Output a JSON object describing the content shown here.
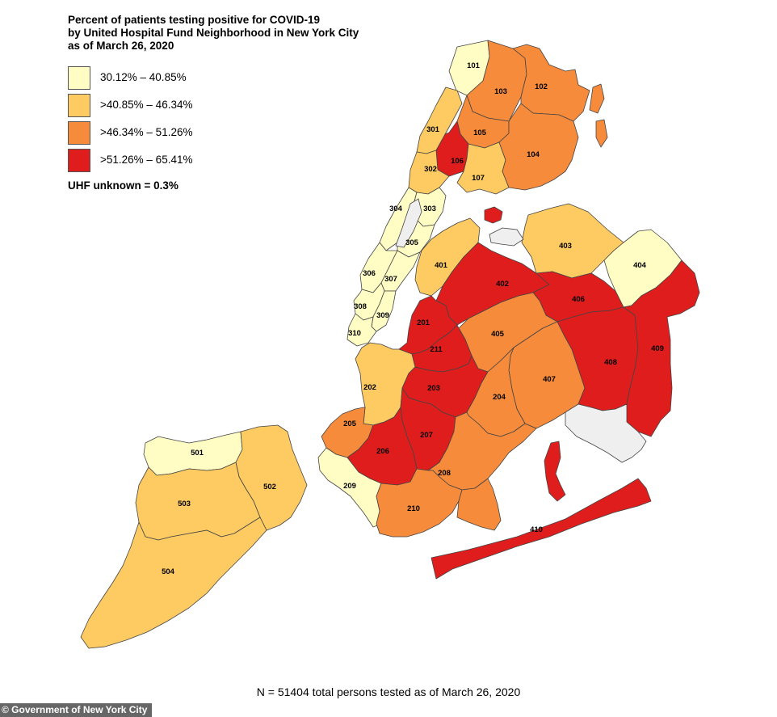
{
  "title": {
    "line1": "Percent of patients testing positive for COVID-19",
    "line2": "by United Hospital Fund Neighborhood in New York City",
    "line3": "as of March 26, 2020"
  },
  "legend": {
    "items": [
      {
        "label": "30.12% – 40.85%",
        "color": "#fffdc4"
      },
      {
        "label": ">40.85% – 46.34%",
        "color": "#fdcb62"
      },
      {
        "label": ">46.34% – 51.26%",
        "color": "#f68b3c"
      },
      {
        "label": ">51.26% – 65.41%",
        "color": "#e01d1d"
      }
    ]
  },
  "unknown_note": "UHF unknown = 0.3%",
  "footnote": "N = 51404 total persons tested as of March 26, 2020",
  "credit": "© Government of New York City",
  "colors": {
    "no_data": "#efefef",
    "boundary": "#444444",
    "water": "#ffffff"
  },
  "neighborhoods": [
    {
      "id": "101",
      "class": 1
    },
    {
      "id": "102",
      "class": 3
    },
    {
      "id": "103",
      "class": 3
    },
    {
      "id": "104",
      "class": 3
    },
    {
      "id": "105",
      "class": 3
    },
    {
      "id": "106",
      "class": 4
    },
    {
      "id": "107",
      "class": 2
    },
    {
      "id": "201",
      "class": 4
    },
    {
      "id": "202",
      "class": 2
    },
    {
      "id": "203",
      "class": 4
    },
    {
      "id": "204",
      "class": 3
    },
    {
      "id": "205",
      "class": 3
    },
    {
      "id": "206",
      "class": 4
    },
    {
      "id": "207",
      "class": 4
    },
    {
      "id": "208",
      "class": 3
    },
    {
      "id": "209",
      "class": 1
    },
    {
      "id": "210",
      "class": 3
    },
    {
      "id": "211",
      "class": 4
    },
    {
      "id": "301",
      "class": 2
    },
    {
      "id": "302",
      "class": 2
    },
    {
      "id": "303",
      "class": 1
    },
    {
      "id": "304",
      "class": 1
    },
    {
      "id": "305",
      "class": 1
    },
    {
      "id": "306",
      "class": 1
    },
    {
      "id": "307",
      "class": 1
    },
    {
      "id": "308",
      "class": 1
    },
    {
      "id": "309",
      "class": 1
    },
    {
      "id": "310",
      "class": 1
    },
    {
      "id": "401",
      "class": 2
    },
    {
      "id": "402",
      "class": 4
    },
    {
      "id": "403",
      "class": 2
    },
    {
      "id": "404",
      "class": 1
    },
    {
      "id": "405",
      "class": 3
    },
    {
      "id": "406",
      "class": 4
    },
    {
      "id": "407",
      "class": 3
    },
    {
      "id": "408",
      "class": 4
    },
    {
      "id": "409",
      "class": 4
    },
    {
      "id": "410",
      "class": 4
    },
    {
      "id": "501",
      "class": 1
    },
    {
      "id": "502",
      "class": 2
    },
    {
      "id": "503",
      "class": 2
    },
    {
      "id": "504",
      "class": 2
    }
  ]
}
